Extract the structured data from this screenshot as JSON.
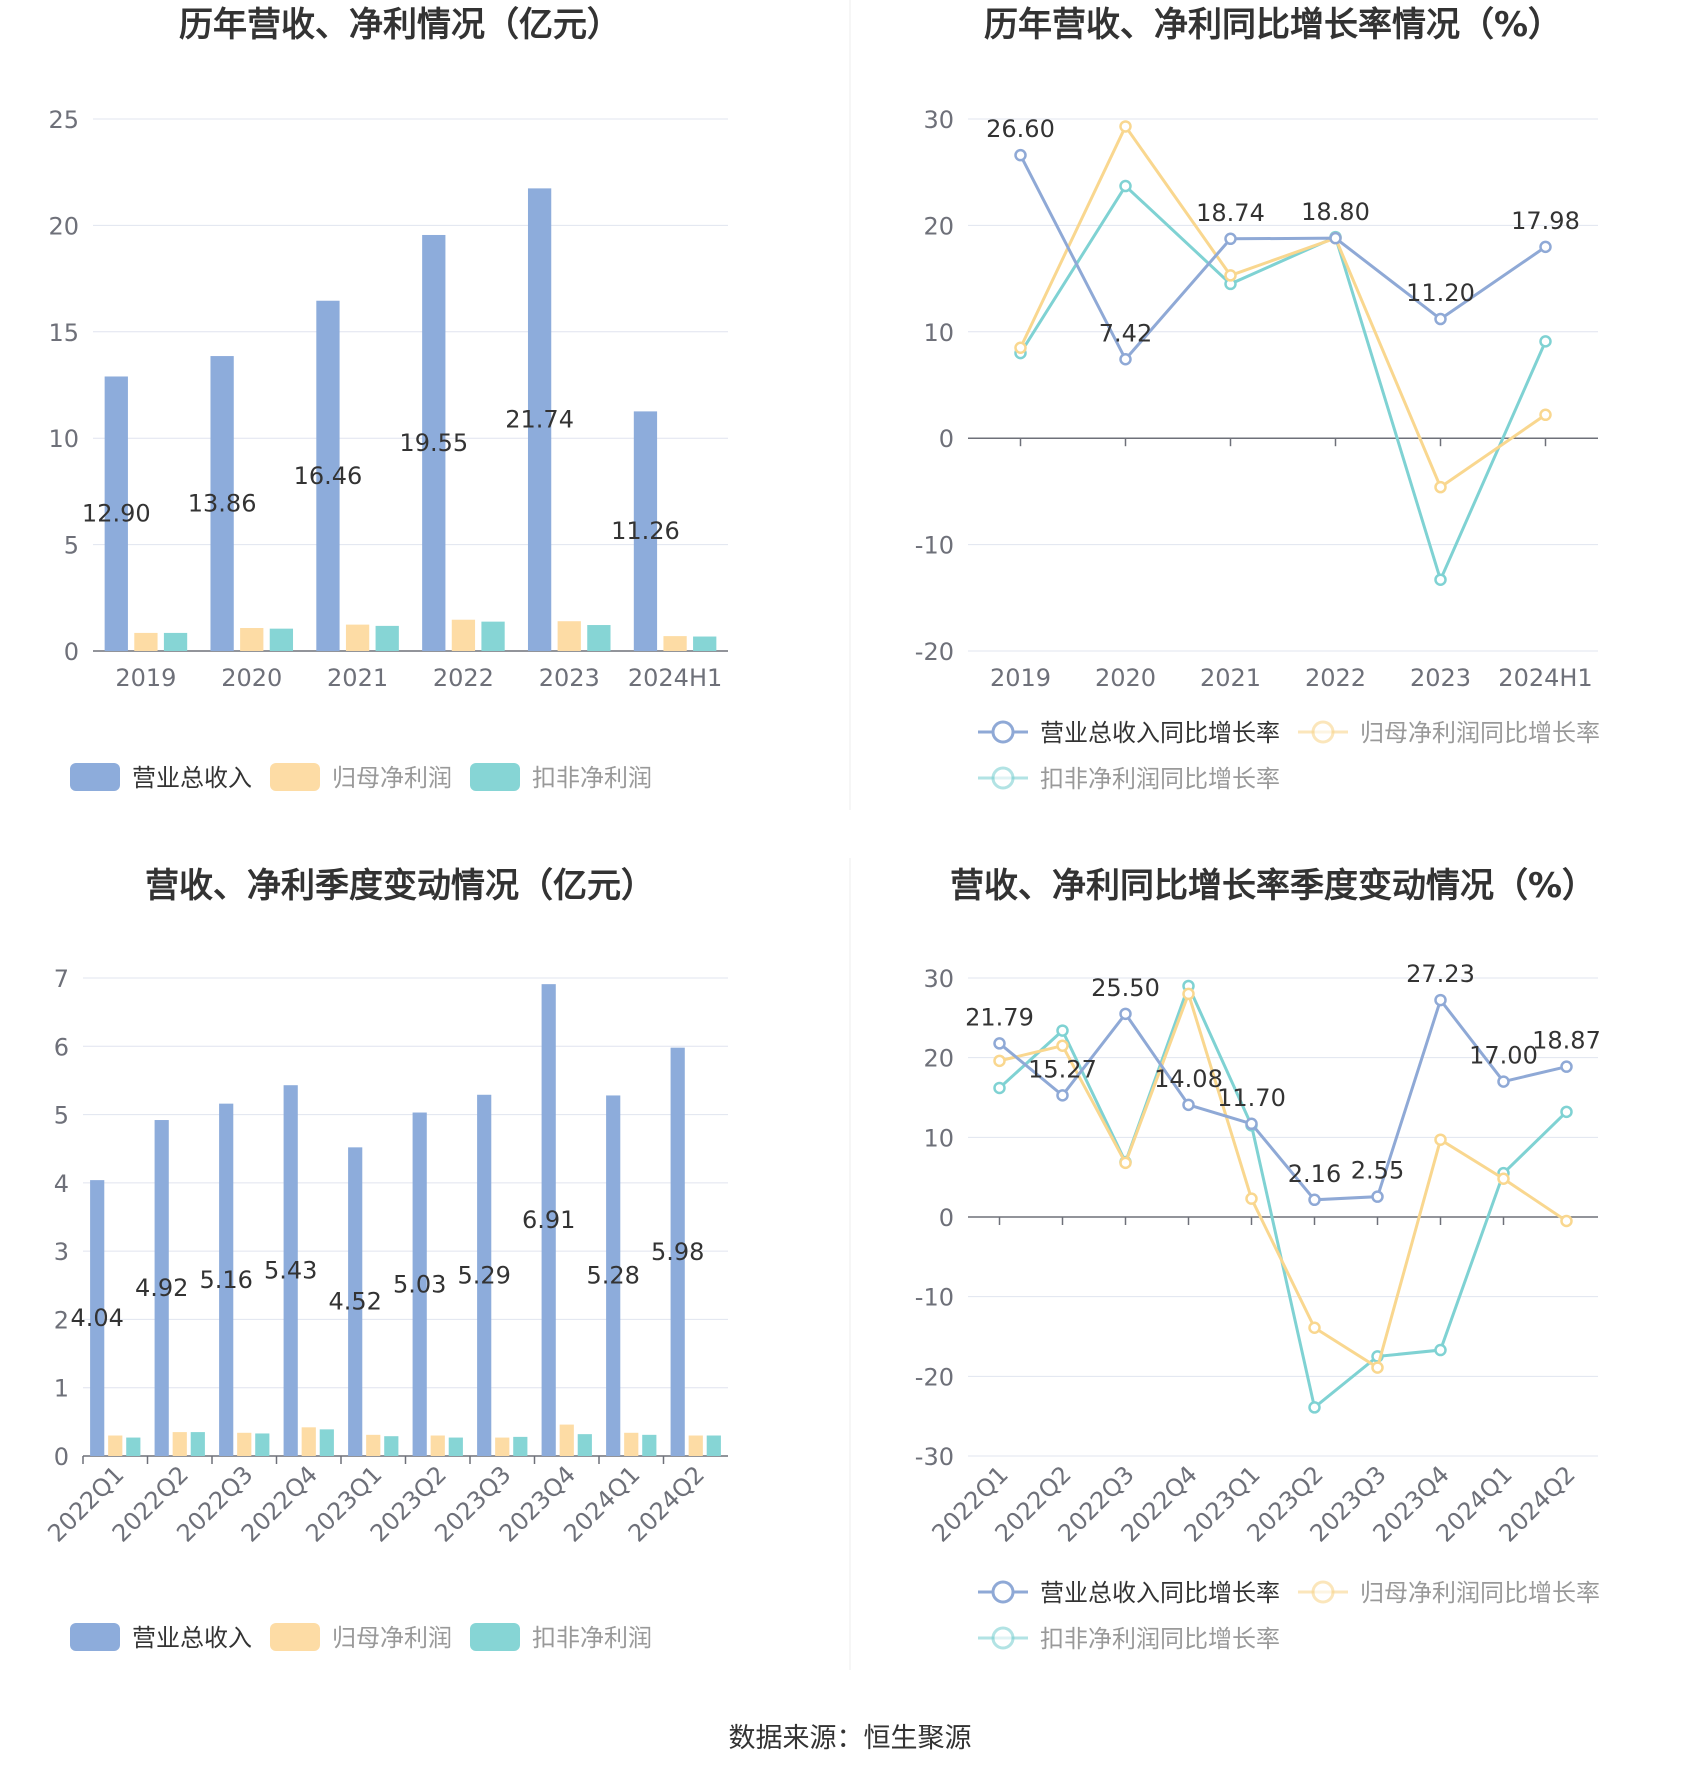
{
  "source": "数据来源：恒生聚源",
  "colors": {
    "revenue": "#8DACDB",
    "net_profit": "#FDDCA5",
    "deducted_profit": "#86D5D5",
    "revenue_line": "#8FA9D6",
    "net_line": "#F9D78F",
    "deducted_line": "#7FD2D3",
    "grid": "#E0E4EF",
    "axis": "#6E7079",
    "label": "#333333",
    "tick": "#6E7079"
  },
  "chart_data": [
    {
      "type": "bar",
      "title": "历年营收、净利情况（亿元）",
      "categories": [
        "2019",
        "2020",
        "2021",
        "2022",
        "2023",
        "2024H1"
      ],
      "ylim": [
        0,
        25
      ],
      "yticks": [
        0,
        5,
        10,
        15,
        20,
        25
      ],
      "legend": "bottom",
      "series": [
        {
          "name": "营业总收入",
          "values": [
            12.9,
            13.86,
            16.46,
            19.55,
            21.74,
            11.26
          ],
          "labels": [
            "12.90",
            "13.86",
            "16.46",
            "19.55",
            "21.74",
            "11.26"
          ]
        },
        {
          "name": "归母净利润",
          "values": [
            0.85,
            1.08,
            1.24,
            1.47,
            1.4,
            0.7
          ]
        },
        {
          "name": "扣非净利润",
          "values": [
            0.85,
            1.05,
            1.18,
            1.38,
            1.22,
            0.68
          ]
        }
      ]
    },
    {
      "type": "line",
      "title": "历年营收、净利同比增长率情况（%）",
      "categories": [
        "2019",
        "2020",
        "2021",
        "2022",
        "2023",
        "2024H1"
      ],
      "ylim": [
        -20,
        30
      ],
      "yticks": [
        -20,
        -10,
        0,
        10,
        20,
        30
      ],
      "legend": "bottom",
      "series": [
        {
          "name": "营业总收入同比增长率",
          "values": [
            26.6,
            7.42,
            18.74,
            18.8,
            11.2,
            17.98
          ],
          "labels": [
            "26.60",
            "7.42",
            "18.74",
            "18.80",
            "11.20",
            "17.98"
          ]
        },
        {
          "name": "归母净利润同比增长率",
          "values": [
            8.5,
            29.3,
            15.3,
            18.8,
            -4.6,
            2.2
          ]
        },
        {
          "name": "扣非净利润同比增长率",
          "values": [
            8.0,
            23.7,
            14.5,
            18.9,
            -13.3,
            9.1
          ]
        }
      ]
    },
    {
      "type": "bar",
      "title": "营收、净利季度变动情况（亿元）",
      "categories": [
        "2022Q1",
        "2022Q2",
        "2022Q3",
        "2022Q4",
        "2023Q1",
        "2023Q2",
        "2023Q3",
        "2023Q4",
        "2024Q1",
        "2024Q2"
      ],
      "ylim": [
        0,
        7
      ],
      "yticks": [
        0,
        1,
        2,
        3,
        4,
        5,
        6,
        7
      ],
      "legend": "bottom",
      "series": [
        {
          "name": "营业总收入",
          "values": [
            4.04,
            4.92,
            5.16,
            5.43,
            4.52,
            5.03,
            5.29,
            6.91,
            5.28,
            5.98
          ],
          "labels": [
            "4.04",
            "4.92",
            "5.16",
            "5.43",
            "4.52",
            "5.03",
            "5.29",
            "6.91",
            "5.28",
            "5.98"
          ]
        },
        {
          "name": "归母净利润",
          "values": [
            0.3,
            0.35,
            0.34,
            0.42,
            0.31,
            0.3,
            0.27,
            0.46,
            0.34,
            0.3
          ]
        },
        {
          "name": "扣非净利润",
          "values": [
            0.27,
            0.35,
            0.33,
            0.39,
            0.29,
            0.27,
            0.28,
            0.32,
            0.31,
            0.3
          ]
        }
      ]
    },
    {
      "type": "line",
      "title": "营收、净利同比增长率季度变动情况（%）",
      "categories": [
        "2022Q1",
        "2022Q2",
        "2022Q3",
        "2022Q4",
        "2023Q1",
        "2023Q2",
        "2023Q3",
        "2023Q4",
        "2024Q1",
        "2024Q2"
      ],
      "ylim": [
        -30,
        30
      ],
      "yticks": [
        -30,
        -20,
        -10,
        0,
        10,
        20,
        30
      ],
      "legend": "bottom",
      "series": [
        {
          "name": "营业总收入同比增长率",
          "values": [
            21.79,
            15.27,
            25.5,
            14.08,
            11.7,
            2.16,
            2.55,
            27.23,
            17.0,
            18.87
          ],
          "labels": [
            "21.79",
            "15.27",
            "25.50",
            "14.08",
            "11.70",
            "2.16",
            "2.55",
            "27.23",
            "17.00",
            "18.87"
          ]
        },
        {
          "name": "归母净利润同比增长率",
          "values": [
            19.6,
            21.5,
            6.8,
            28.0,
            2.3,
            -13.9,
            -18.9,
            9.7,
            4.8,
            -0.5
          ]
        },
        {
          "name": "扣非净利润同比增长率",
          "values": [
            16.2,
            23.4,
            6.9,
            29.0,
            11.5,
            -23.9,
            -17.5,
            -16.7,
            5.5,
            13.2
          ]
        }
      ]
    }
  ]
}
